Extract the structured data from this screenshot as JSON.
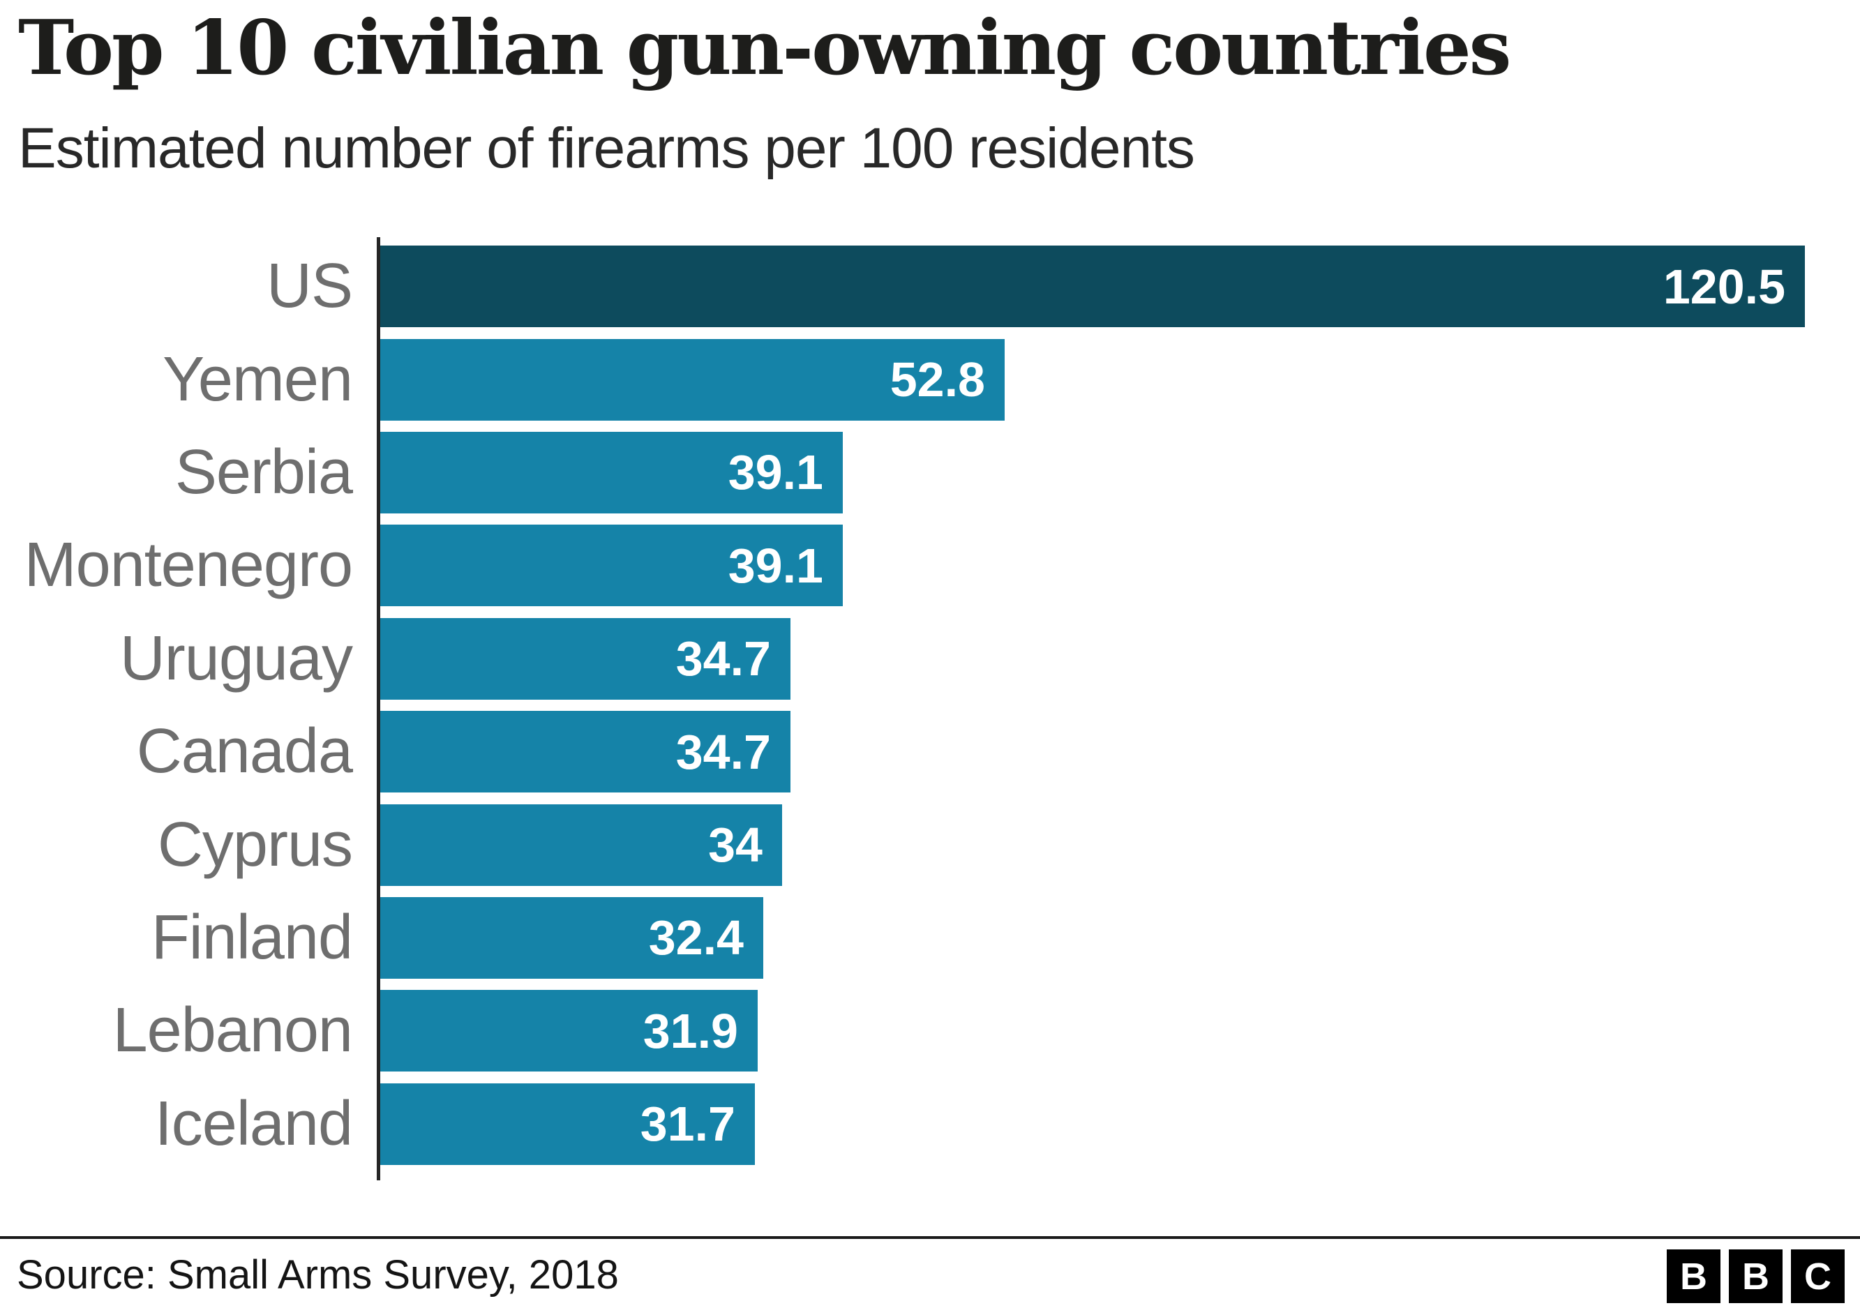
{
  "header": {
    "title": "Top 10 civilian gun-owning countries",
    "subtitle": "Estimated number of firearms per 100 residents"
  },
  "chart_data": {
    "type": "bar",
    "orientation": "horizontal",
    "title": "Top 10 civilian gun-owning countries",
    "subtitle": "Estimated number of firearms per 100 residents",
    "categories": [
      "US",
      "Yemen",
      "Serbia",
      "Montenegro",
      "Uruguay",
      "Canada",
      "Cyprus",
      "Finland",
      "Lebanon",
      "Iceland"
    ],
    "values": [
      120.5,
      52.8,
      39.1,
      39.1,
      34.7,
      34.7,
      34,
      32.4,
      31.9,
      31.7
    ],
    "value_labels": [
      "120.5",
      "52.8",
      "39.1",
      "39.1",
      "34.7",
      "34.7",
      "34",
      "32.4",
      "31.9",
      "31.7"
    ],
    "xlim": [
      0,
      125
    ],
    "grid": false,
    "legend": false,
    "value_labels_position": "inside-end",
    "bar_color": "#1583a8",
    "highlight_color": "#0d4b5d",
    "highlight_index": 0,
    "label_color": "#6e6e6e",
    "value_label_color": "#ffffff",
    "axis_line_color": "#262626"
  },
  "footer": {
    "source": "Source: Small Arms Survey, 2018",
    "logo_letters": [
      "B",
      "B",
      "C"
    ]
  }
}
